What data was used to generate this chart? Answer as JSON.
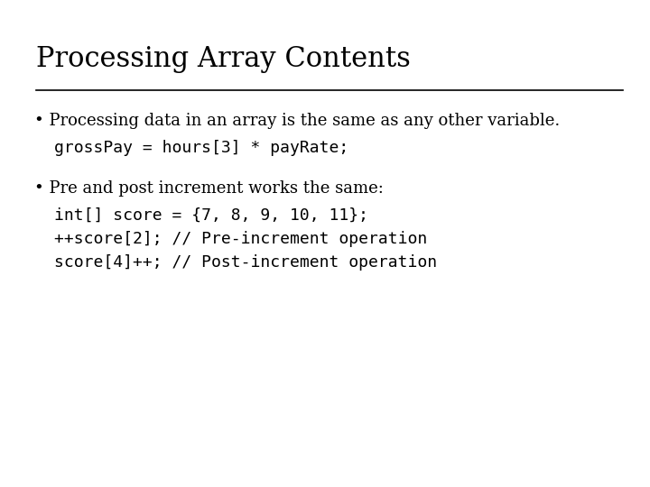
{
  "title": "Processing Array Contents",
  "background_color": "#ffffff",
  "title_fontsize": 22,
  "title_font": "serif",
  "title_color": "#000000",
  "line_color": "#000000",
  "bullet1_text": "Processing data in an array is the same as any other variable.",
  "bullet1_code": "grossPay = hours[3] * payRate;",
  "bullet2_text": "Pre and post increment works the same:",
  "bullet2_code_line1": "int[] score = {7, 8, 9, 10, 11};",
  "bullet2_code_line2": "++score[2]; // Pre-increment operation",
  "bullet2_code_line3": "score[4]++; // Post-increment operation",
  "bullet_fontsize": 13,
  "code_fontsize": 13,
  "text_color": "#000000"
}
